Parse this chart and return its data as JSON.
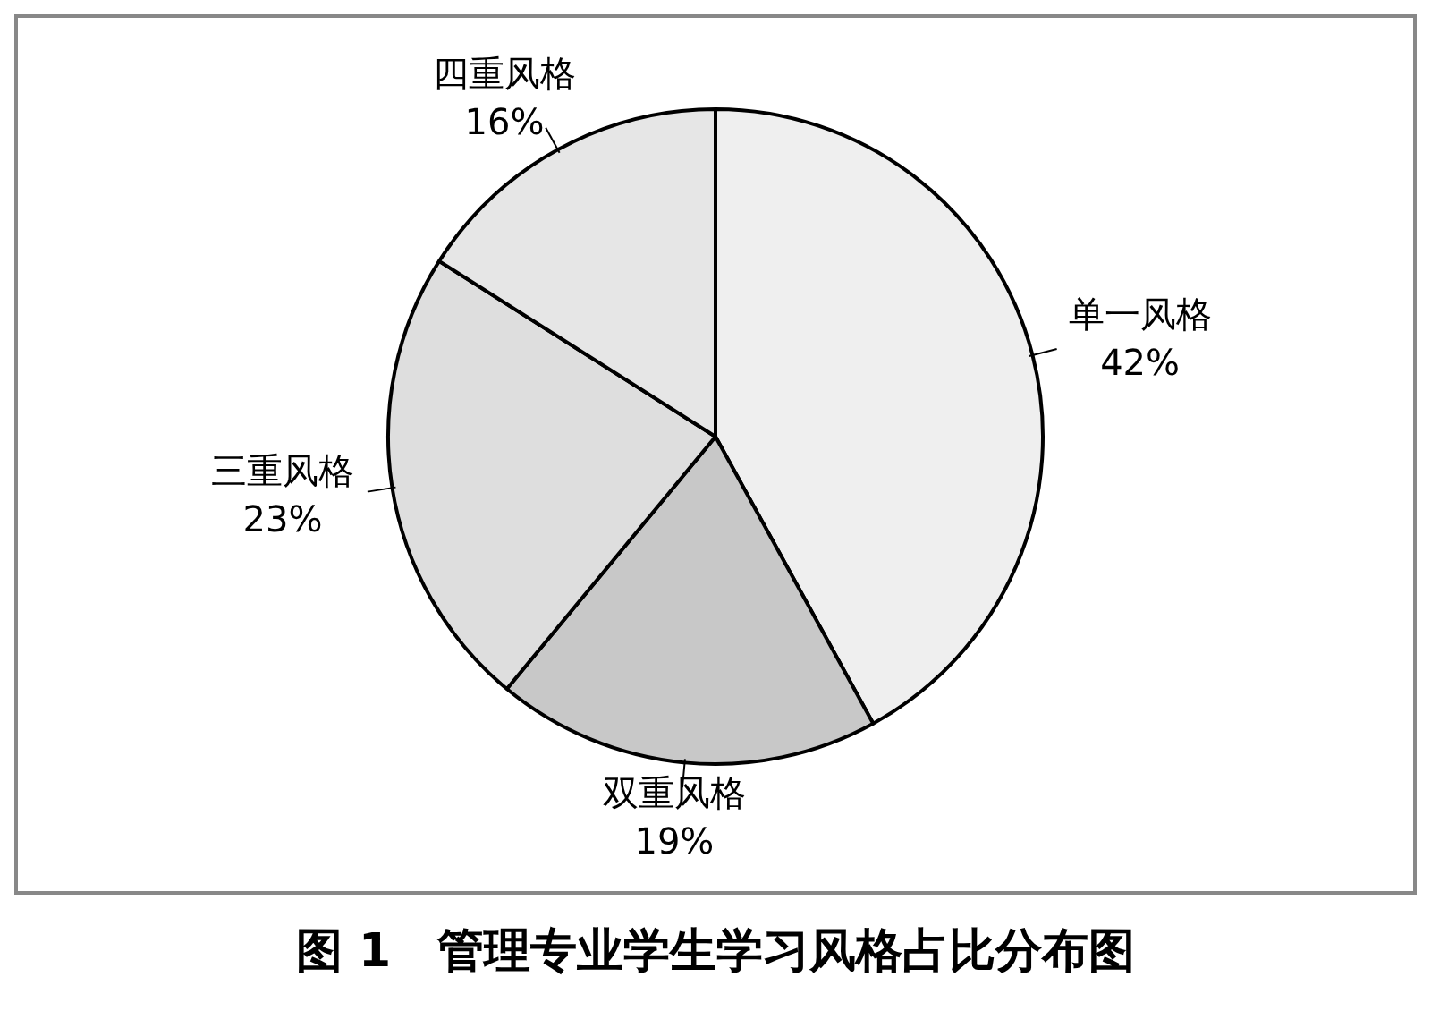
{
  "chart_data": {
    "type": "pie",
    "title": "图 1　管理专业学生学习风格占比分布图",
    "categories": [
      "单一风格",
      "双重风格",
      "三重风格",
      "四重风格"
    ],
    "values": [
      42,
      19,
      23,
      16
    ],
    "value_labels": [
      "42%",
      "19%",
      "23%",
      "16%"
    ],
    "colors": [
      "#efefef",
      "#c8c8c8",
      "#dedede",
      "#e6e6e6"
    ],
    "legend": false
  }
}
